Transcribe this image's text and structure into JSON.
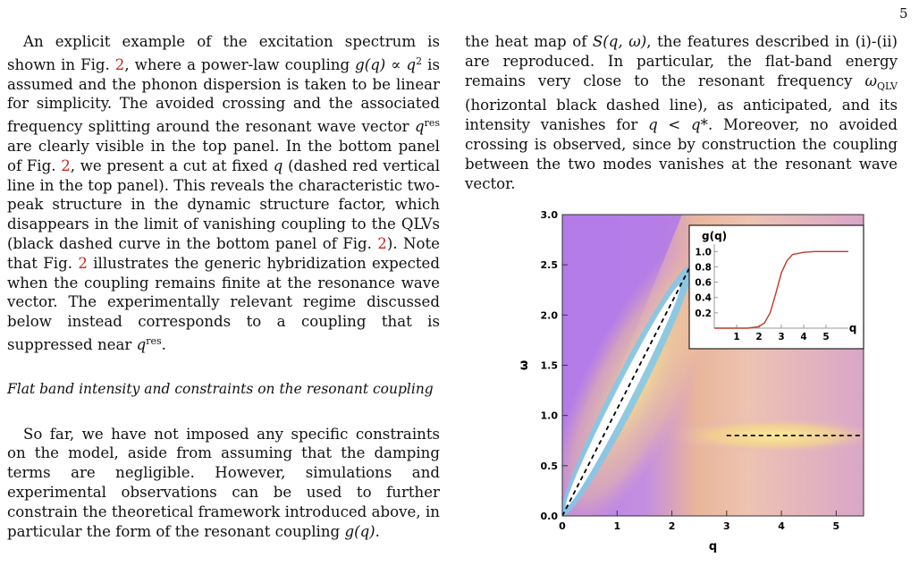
{
  "page_number": "5",
  "left_column": {
    "p1": {
      "a": "An explicit example of the excitation spectrum is shown in Fig.",
      "ref1": "2",
      "b": ", where a power-law coupling",
      "math1": "g(q) ∝ q",
      "math1_sup": "2",
      "c": "is assumed and the phonon dispersion is taken to be linear for simplicity. The avoided crossing and the associated frequency splitting around the resonant wave vector",
      "math2": "q",
      "math2_sup": "res",
      "d": "are clearly visible in the top panel. In the bottom panel of Fig.",
      "ref2": "2",
      "e": ", we present a cut at fixed",
      "math3": "q",
      "f": "(dashed red vertical line in the top panel). This reveals the characteristic two-peak structure in the dynamic structure factor, which disappears in the limit of vanishing coupling to the QLVs (black dashed curve in the bottom panel of Fig.",
      "ref3": "2",
      "g": "). Note that Fig.",
      "ref4": "2",
      "h": "illustrates the generic hybridization expected when the coupling remains finite at the resonance wave vector. The experimentally relevant regime discussed below instead corresponds to a coupling that is suppressed near",
      "math4": "q",
      "math4_sup": "res",
      "i": "."
    },
    "heading": "Flat band intensity and constraints on the resonant coupling",
    "p2": {
      "a": "So far, we have not imposed any specific constraints on the model, aside from assuming that the damping terms are negligible. However, simulations and experimental observations can be used to further constrain the theoretical framework introduced above, in particular the form of the resonant coupling",
      "math": "g(q)",
      "b": "."
    }
  },
  "right_column": {
    "a": "the heat map of",
    "math1": "S(q, ω)",
    "b": ", the features described in (i)-(ii) are reproduced. In particular, the flat-band energy remains very close to the resonant frequency",
    "math2": "ω",
    "math2_sub": "QLV",
    "c": "(horizontal black dashed line), as anticipated, and its intensity vanishes for",
    "math3": "q < q*",
    "d": ". Moreover, no avoided crossing is observed, since by construction the coupling between the two modes vanishes at the resonant wave vector."
  },
  "chart_data": [
    {
      "type": "heatmap",
      "xlabel": "q",
      "ylabel": "ω",
      "xlim": [
        0,
        5.5
      ],
      "ylim": [
        0,
        3.0
      ],
      "xticks": [
        "0",
        "1",
        "2",
        "3",
        "4",
        "5"
      ],
      "yticks": [
        "0.0",
        "0.5",
        "1.0",
        "1.5",
        "2.0",
        "2.5",
        "3.0"
      ],
      "phonon_line": {
        "x": [
          0,
          2.35
        ],
        "y": [
          0,
          2.5
        ],
        "style": "dashed",
        "color": "#000000"
      },
      "flat_band_line": {
        "x": [
          3.0,
          5.5
        ],
        "y": [
          0.8,
          0.8
        ],
        "style": "dashed",
        "color": "#000000"
      },
      "colors": {
        "low": "#b57ee6",
        "mid": "#e8b0a8",
        "high": "#f6e68a",
        "peak": "#ffffff"
      }
    },
    {
      "type": "line",
      "title": "g(q)",
      "xlabel": "q",
      "xlim": [
        0,
        6
      ],
      "ylim": [
        0,
        1.05
      ],
      "xticks": [
        "1",
        "2",
        "3",
        "4",
        "5"
      ],
      "yticks": [
        "0.2",
        "0.4",
        "0.6",
        "0.8",
        "1.0"
      ],
      "series": [
        {
          "color": "#c0392b",
          "x": [
            0,
            0.5,
            1,
            1.5,
            2,
            2.25,
            2.5,
            2.75,
            3,
            3.25,
            3.5,
            4,
            4.5,
            5,
            5.5,
            6
          ],
          "y": [
            0,
            0,
            0,
            0,
            0.02,
            0.07,
            0.2,
            0.45,
            0.72,
            0.88,
            0.96,
            0.99,
            1,
            1,
            1,
            1
          ]
        }
      ]
    }
  ]
}
